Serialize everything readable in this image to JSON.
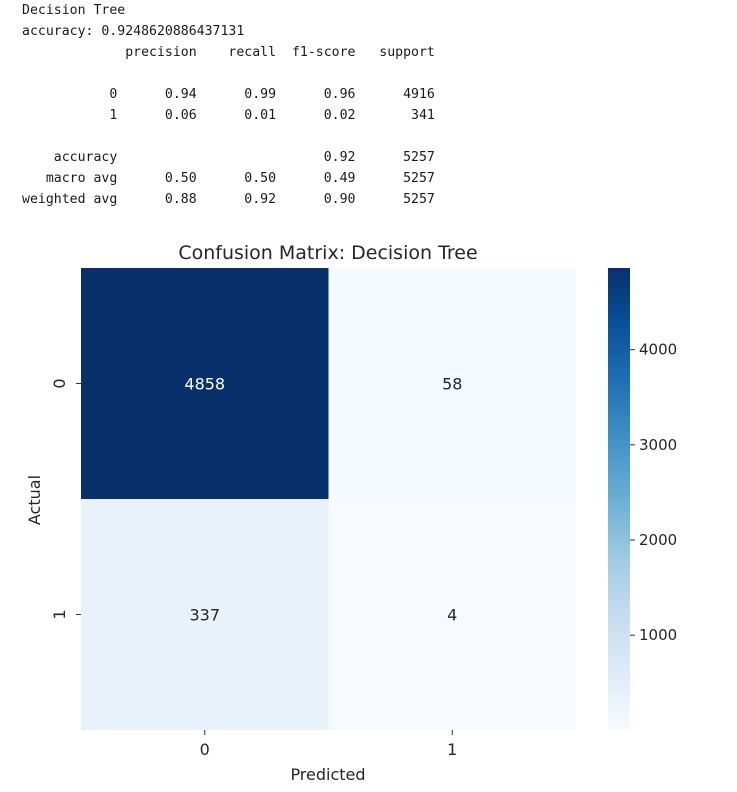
{
  "output": {
    "model_line": "Decision Tree",
    "accuracy_line": "accuracy: 0.9248620886437131",
    "report": {
      "headers": [
        "precision",
        "recall",
        "f1-score",
        "support"
      ],
      "rows": [
        {
          "label": "0",
          "precision": "0.94",
          "recall": "0.99",
          "f1": "0.96",
          "support": "4916"
        },
        {
          "label": "1",
          "precision": "0.06",
          "recall": "0.01",
          "f1": "0.02",
          "support": "341"
        }
      ],
      "summary": [
        {
          "label": "accuracy",
          "precision": "",
          "recall": "",
          "f1": "0.92",
          "support": "5257"
        },
        {
          "label": "macro avg",
          "precision": "0.50",
          "recall": "0.50",
          "f1": "0.49",
          "support": "5257"
        },
        {
          "label": "weighted avg",
          "precision": "0.88",
          "recall": "0.92",
          "f1": "0.90",
          "support": "5257"
        }
      ]
    }
  },
  "chart_data": {
    "type": "heatmap",
    "title": "Confusion Matrix: Decision Tree",
    "xlabel": "Predicted",
    "ylabel": "Actual",
    "x_categories": [
      "0",
      "1"
    ],
    "y_categories": [
      "0",
      "1"
    ],
    "values": [
      [
        4858,
        58
      ],
      [
        337,
        4
      ]
    ],
    "colormap": "Blues",
    "colorbar": {
      "min": 4,
      "max": 4858,
      "ticks": [
        1000,
        2000,
        3000,
        4000
      ]
    },
    "annotation_colors": {
      "dark": "#ffffff",
      "light": "#262626"
    }
  }
}
